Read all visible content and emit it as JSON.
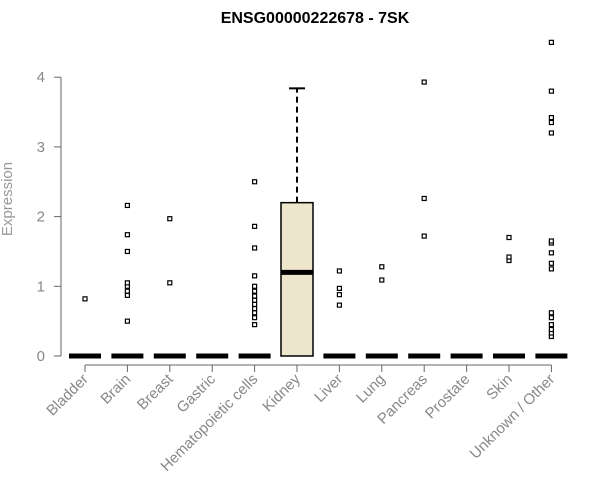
{
  "chart_data": {
    "type": "box",
    "title": "ENSG00000222678 - 7SK",
    "ylabel": "Expression",
    "xlabel": "",
    "ylim": [
      0,
      4.5
    ],
    "yticks": [
      0,
      1,
      2,
      3,
      4
    ],
    "categories": [
      "Bladder",
      "Brain",
      "Breast",
      "Gastric",
      "Hematopoietic cells",
      "Kidney",
      "Liver",
      "Lung",
      "Pancreas",
      "Prostate",
      "Skin",
      "Unknown / Other"
    ],
    "boxes": [
      {
        "category": "Bladder",
        "q1": 0,
        "median": 0,
        "q3": 0,
        "whisker_low": 0,
        "whisker_high": 0,
        "outliers": [
          0.82
        ]
      },
      {
        "category": "Brain",
        "q1": 0,
        "median": 0,
        "q3": 0,
        "whisker_low": 0,
        "whisker_high": 0,
        "outliers": [
          0.5,
          0.87,
          0.93,
          1.0,
          1.05,
          1.5,
          1.74,
          2.16
        ]
      },
      {
        "category": "Breast",
        "q1": 0,
        "median": 0,
        "q3": 0,
        "whisker_low": 0,
        "whisker_high": 0,
        "outliers": [
          1.05,
          1.97
        ]
      },
      {
        "category": "Gastric",
        "q1": 0,
        "median": 0,
        "q3": 0,
        "whisker_low": 0,
        "whisker_high": 0,
        "outliers": []
      },
      {
        "category": "Hematopoietic cells",
        "q1": 0,
        "median": 0,
        "q3": 0,
        "whisker_low": 0,
        "whisker_high": 0,
        "outliers": [
          0.45,
          0.55,
          0.62,
          0.68,
          0.74,
          0.8,
          0.86,
          0.93,
          1.0,
          1.15,
          1.55,
          1.86,
          2.5
        ]
      },
      {
        "category": "Kidney",
        "q1": 0,
        "median": 1.2,
        "q3": 2.2,
        "whisker_low": 0,
        "whisker_high": 3.84,
        "outliers": []
      },
      {
        "category": "Liver",
        "q1": 0,
        "median": 0,
        "q3": 0,
        "whisker_low": 0,
        "whisker_high": 0,
        "outliers": [
          0.73,
          0.88,
          0.97,
          1.22
        ]
      },
      {
        "category": "Lung",
        "q1": 0,
        "median": 0,
        "q3": 0,
        "whisker_low": 0,
        "whisker_high": 0,
        "outliers": [
          1.09,
          1.28
        ]
      },
      {
        "category": "Pancreas",
        "q1": 0,
        "median": 0,
        "q3": 0,
        "whisker_low": 0,
        "whisker_high": 0,
        "outliers": [
          1.72,
          2.26,
          3.93
        ]
      },
      {
        "category": "Prostate",
        "q1": 0,
        "median": 0,
        "q3": 0,
        "whisker_low": 0,
        "whisker_high": 0,
        "outliers": []
      },
      {
        "category": "Skin",
        "q1": 0,
        "median": 0,
        "q3": 0,
        "whisker_low": 0,
        "whisker_high": 0,
        "outliers": [
          1.37,
          1.42,
          1.7
        ]
      },
      {
        "category": "Unknown / Other",
        "q1": 0,
        "median": 0,
        "q3": 0,
        "whisker_low": 0,
        "whisker_high": 0,
        "outliers": [
          0.28,
          0.33,
          0.38,
          0.45,
          0.55,
          0.62,
          1.25,
          1.33,
          1.48,
          1.62,
          1.65,
          3.2,
          3.35,
          3.42,
          3.8,
          4.5
        ]
      }
    ],
    "grid": false,
    "legend": "none",
    "colors": {
      "box_fill": "#ede6cc",
      "box_stroke": "#000000",
      "point_stroke": "#000000",
      "axis": "#666666",
      "tick_text": "#888888"
    }
  }
}
